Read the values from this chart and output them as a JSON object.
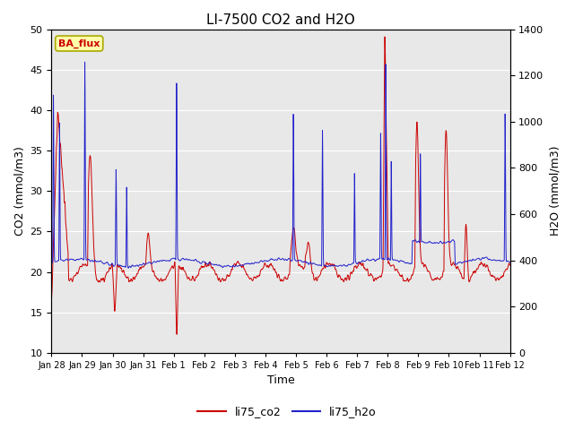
{
  "title": "LI-7500 CO2 and H2O",
  "xlabel": "Time",
  "ylabel_left": "CO2 (mmol/m3)",
  "ylabel_right": "H2O (mmol/m3)",
  "ylim_left": [
    10,
    50
  ],
  "ylim_right": [
    0,
    1400
  ],
  "yticks_left": [
    10,
    15,
    20,
    25,
    30,
    35,
    40,
    45,
    50
  ],
  "yticks_right": [
    0,
    200,
    400,
    600,
    800,
    1000,
    1200,
    1400
  ],
  "xtick_labels": [
    "Jan 28",
    "Jan 29",
    "Jan 30",
    "Jan 31",
    "Feb 1",
    "Feb 2",
    "Feb 3",
    "Feb 4",
    "Feb 5",
    "Feb 6",
    "Feb 7",
    "Feb 8",
    "Feb 9",
    "Feb 10",
    "Feb 11",
    "Feb 12"
  ],
  "legend_labels": [
    "li75_co2",
    "li75_h2o"
  ],
  "legend_colors": [
    "#cc0000",
    "#2222cc"
  ],
  "annotation_text": "BA_flux",
  "annotation_color": "#cc0000",
  "annotation_bg": "#ffffaa",
  "annotation_border": "#aaaa00",
  "bg_color": "#e8e8e8",
  "co2_color": "#cc0000",
  "h2o_color": "#2222cc",
  "grid_color": "#ffffff",
  "title_fontsize": 11,
  "axis_fontsize": 9,
  "tick_fontsize": 8,
  "legend_fontsize": 9
}
